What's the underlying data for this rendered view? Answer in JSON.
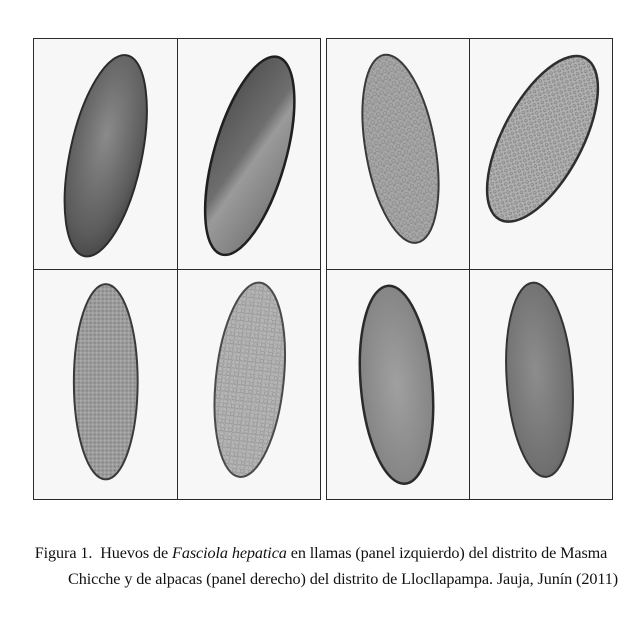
{
  "figure": {
    "panels": [
      {
        "id": "llamas",
        "cells": 4
      },
      {
        "id": "alpacas",
        "cells": 4
      }
    ]
  },
  "caption": {
    "label": "Figura 1.",
    "pre": "Huevos de",
    "species": "Fasciola hepatica",
    "post": "en llamas (panel izquierdo) del distrito de Masma",
    "line2": "Chicche y de alpacas (panel derecho) del distrito de Llocllapampa. Jauja, Junín (2011)"
  },
  "colors": {
    "egg_dark": "#5a5a5a",
    "egg_mid": "#8c8c8c",
    "egg_light": "#b9b9b9",
    "border": "#2a2a2a"
  }
}
